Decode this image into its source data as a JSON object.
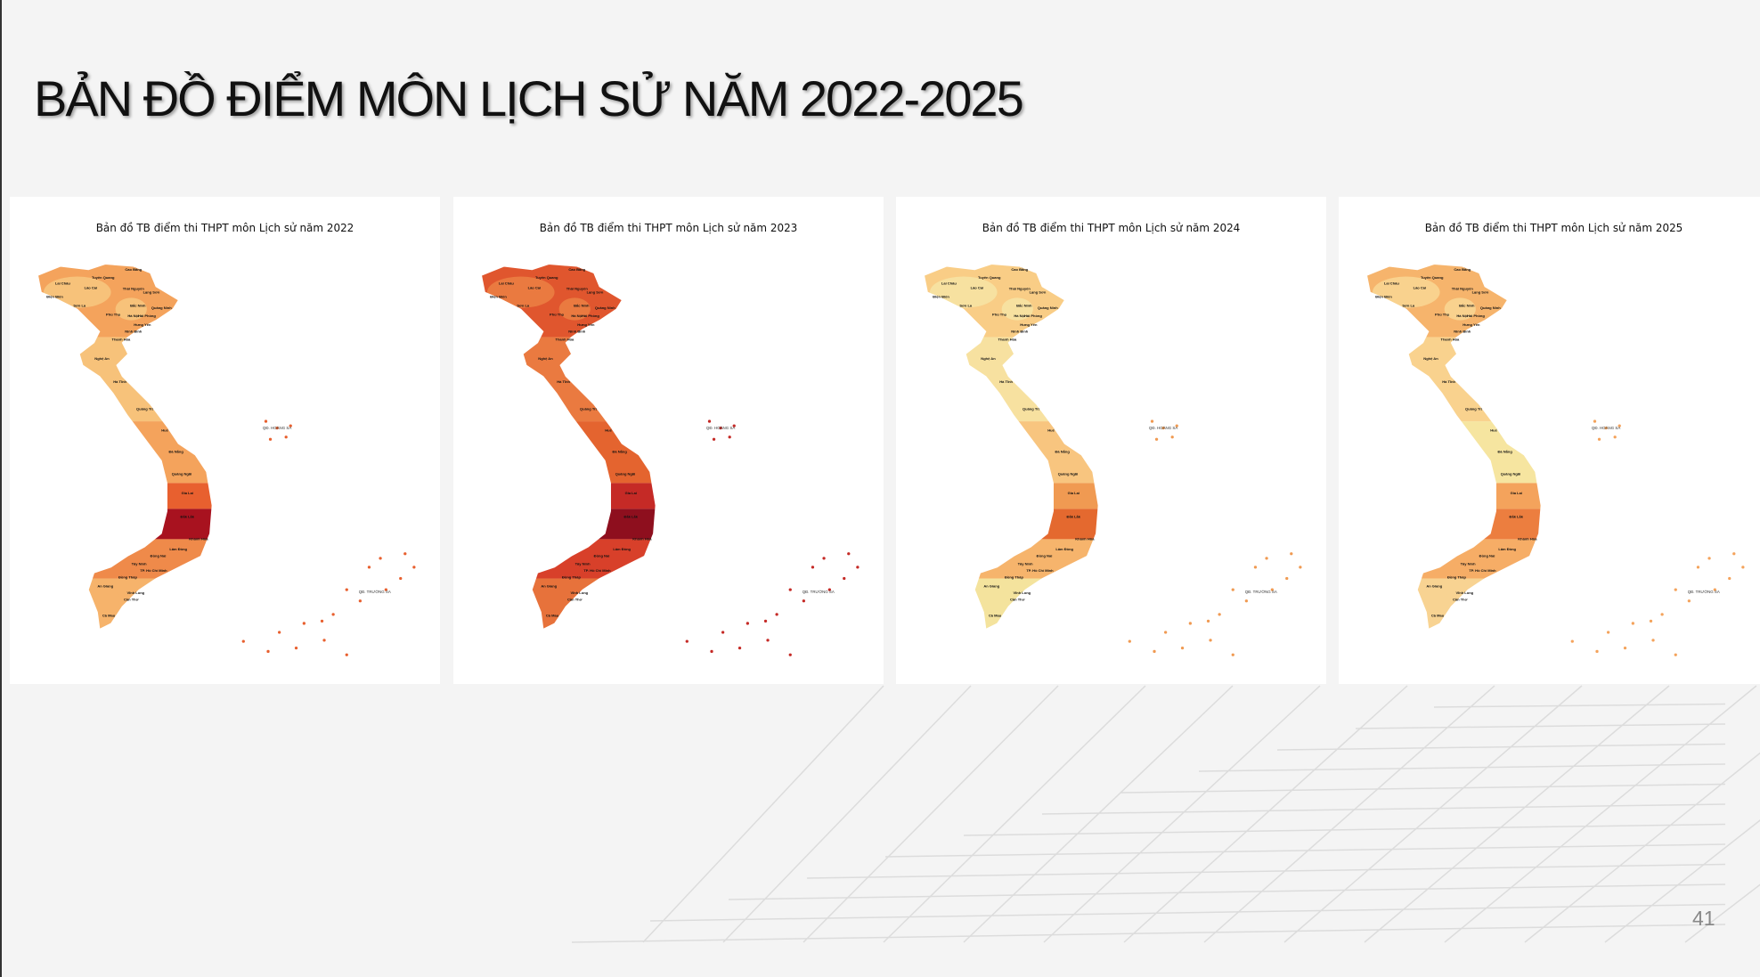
{
  "header": {
    "title": "BẢN ĐỒ ĐIỂM MÔN LỊCH SỬ NĂM 2022-2025"
  },
  "maps": [
    {
      "title": "Bản đồ TB điểm thi THPT môn Lịch sử năm 2022"
    },
    {
      "title": "Bản đồ TB điểm thi THPT môn Lịch sử năm 2023"
    },
    {
      "title": "Bản đồ TB điểm thi THPT môn Lịch sử năm 2024"
    },
    {
      "title": "Bản đồ TB điểm thi THPT môn Lịch sử năm 2025"
    }
  ],
  "islands": [
    "QĐ. HOÀNG SA",
    "QĐ. TRƯỜNG SA"
  ],
  "provinces": [
    "Cao Bằng",
    "Tuyên Quang",
    "Lai Châu",
    "Lào Cai",
    "Thái Nguyên",
    "Lạng Sơn",
    "Điện Biên",
    "Sơn La",
    "Bắc Ninh",
    "Quảng Ninh",
    "Phú Thọ",
    "Hà Nội",
    "Hải Phòng",
    "Hưng Yên",
    "Ninh Bình",
    "Thanh Hóa",
    "Nghệ An",
    "Hà Tĩnh",
    "Quảng Trị",
    "Huế",
    "Đà Nẵng",
    "Quảng Ngãi",
    "Gia Lai",
    "Đắk Lắk",
    "Khánh Hòa",
    "Lâm Đồng",
    "Đồng Nai",
    "Tây Ninh",
    "TP. Hồ Chí Minh",
    "Đồng Tháp",
    "An Giang",
    "Vĩnh Long",
    "Cần Thơ",
    "Cà Mau"
  ],
  "footer": {
    "page_number": "41"
  }
}
